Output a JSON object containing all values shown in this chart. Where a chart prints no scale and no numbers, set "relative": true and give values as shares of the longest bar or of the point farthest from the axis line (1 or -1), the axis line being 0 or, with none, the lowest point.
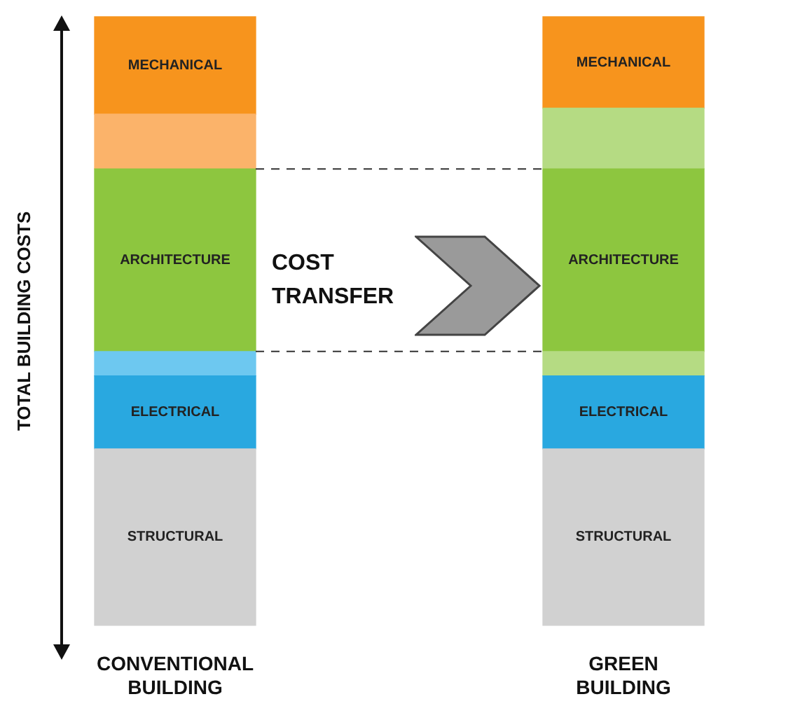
{
  "chart_data": {
    "type": "bar",
    "stacked": true,
    "relative": true,
    "ylabel": "TOTAL BUILDING COSTS",
    "categories": [
      "CONVENTIONAL BUILDING",
      "GREEN BUILDING"
    ],
    "series": [
      {
        "name": "STRUCTURAL",
        "colors": [
          "#d1d1d1",
          "#d1d1d1"
        ],
        "values": [
          0.29,
          0.29
        ]
      },
      {
        "name": "ELECTRICAL",
        "colors": [
          "#29a8e0",
          "#29a8e0"
        ],
        "values": [
          0.12,
          0.12
        ]
      },
      {
        "colors": [
          "#6dc8f0",
          "#b5db83"
        ],
        "values": [
          0.04,
          0.04
        ]
      },
      {
        "name": "ARCHITECTURE",
        "colors": [
          "#8dc63f",
          "#8dc63f"
        ],
        "values": [
          0.3,
          0.3
        ]
      },
      {
        "colors": [
          "#fbb36a",
          "#b5db83"
        ],
        "values": [
          0.09,
          0.1
        ]
      },
      {
        "name": "MECHANICAL",
        "colors": [
          "#f7941d",
          "#f7941d"
        ],
        "values": [
          0.16,
          0.15
        ]
      }
    ],
    "ref_lines": [
      {
        "axis": "y",
        "value": 0.45,
        "line_style": "dashed",
        "color": "#333333"
      },
      {
        "axis": "y",
        "value": 0.75,
        "line_style": "dashed",
        "color": "#333333"
      }
    ],
    "annotations": [
      "COST TRANSFER"
    ],
    "legend": false,
    "grid": false
  }
}
